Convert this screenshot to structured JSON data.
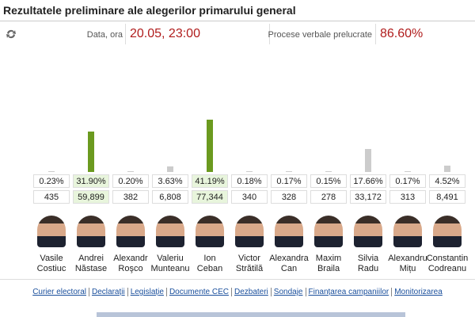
{
  "header": {
    "title": "Rezultatele preliminare ale alegerilor primarului general",
    "date_label": "Data, ora",
    "date_value": "20.05, 23:00",
    "processed_label": "Procese verbale prelucrate",
    "processed_value": "86.60%"
  },
  "candidates": [
    {
      "first": "Vasile",
      "last": "Costiuc",
      "percent": 0.23,
      "percent_label": "0.23%",
      "votes": "435",
      "color": "#cccccc",
      "highlight": false
    },
    {
      "first": "Andrei",
      "last": "Năstase",
      "percent": 31.9,
      "percent_label": "31.90%",
      "votes": "59,899",
      "color": "#6b9a1f",
      "highlight": true
    },
    {
      "first": "Alexandr",
      "last": "Roşco",
      "percent": 0.2,
      "percent_label": "0.20%",
      "votes": "382",
      "color": "#cccccc",
      "highlight": false
    },
    {
      "first": "Valeriu",
      "last": "Munteanu",
      "percent": 3.63,
      "percent_label": "3.63%",
      "votes": "6,808",
      "color": "#cccccc",
      "highlight": false
    },
    {
      "first": "Ion",
      "last": "Ceban",
      "percent": 41.19,
      "percent_label": "41.19%",
      "votes": "77,344",
      "color": "#6b9a1f",
      "highlight": true
    },
    {
      "first": "Victor",
      "last": "Strătilă",
      "percent": 0.18,
      "percent_label": "0.18%",
      "votes": "340",
      "color": "#cccccc",
      "highlight": false
    },
    {
      "first": "Alexandra",
      "last": "Can",
      "percent": 0.17,
      "percent_label": "0.17%",
      "votes": "328",
      "color": "#cccccc",
      "highlight": false
    },
    {
      "first": "Maxim",
      "last": "Braila",
      "percent": 0.15,
      "percent_label": "0.15%",
      "votes": "278",
      "color": "#cccccc",
      "highlight": false
    },
    {
      "first": "Silvia",
      "last": "Radu",
      "percent": 17.66,
      "percent_label": "17.66%",
      "votes": "33,172",
      "color": "#cccccc",
      "highlight": false
    },
    {
      "first": "Alexandru",
      "last": "Mițu",
      "percent": 0.17,
      "percent_label": "0.17%",
      "votes": "313",
      "color": "#cccccc",
      "highlight": false
    },
    {
      "first": "Constantin",
      "last": "Codreanu",
      "percent": 4.52,
      "percent_label": "4.52%",
      "votes": "8,491",
      "color": "#cccccc",
      "highlight": false
    }
  ],
  "footer_links": [
    "Curier electoral",
    "Declarații",
    "Legislație",
    "Documente CEC",
    "Dezbateri",
    "Sondaje",
    "Finanțarea campaniilor",
    "Monitorizarea"
  ]
}
